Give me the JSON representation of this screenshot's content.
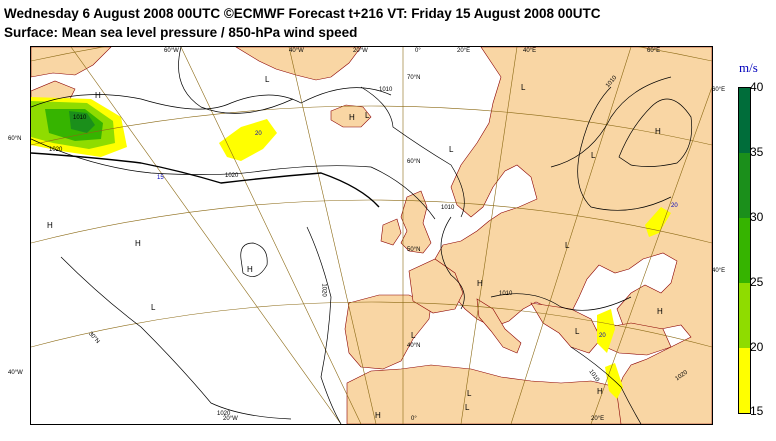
{
  "title_line1": "Wednesday 6 August 2008 00UTC ©ECMWF Forecast t+216 VT: Friday 15 August 2008 00UTC",
  "title_line2": "Surface: Mean sea level pressure / 850-hPa wind speed",
  "legend": {
    "unit": "m/s",
    "ticks": [
      "40",
      "35",
      "30",
      "25",
      "20",
      "15"
    ],
    "colors": [
      "#006d3a",
      "#1b8f1b",
      "#36b400",
      "#8fdc00",
      "#e0f000",
      "#ffff00"
    ]
  },
  "colors": {
    "land": "#f9d6a4",
    "sea": "#ffffff",
    "isobar": "#000000",
    "coast": "#8b0000"
  },
  "lon_labels": [
    "60°W",
    "40°W",
    "20°W",
    "0°",
    "20°E",
    "40°E",
    "60°E"
  ],
  "bottom_lon_labels": [
    "20°W",
    "0°",
    "20°E"
  ],
  "lat_labels": [
    "70°N",
    "60°N",
    "50°N",
    "40°N",
    "30°N"
  ],
  "edge_lat_labels": {
    "left_60": "60°N",
    "left_40": "40°W",
    "right_60": "60°E",
    "right_40": "40°E"
  },
  "isobar_labels": [
    "1010",
    "1020",
    "1010",
    "1020",
    "1010",
    "1010",
    "1010",
    "1020",
    "1020",
    "1010",
    "1020"
  ],
  "wind_labels": [
    "20",
    "20",
    "15",
    "20"
  ],
  "pressure_centres": [
    "H",
    "L",
    "H",
    "H",
    "L",
    "L",
    "H",
    "L",
    "L",
    "H",
    "L",
    "L",
    "H",
    "H",
    "L",
    "H",
    "L",
    "H",
    "H",
    "L",
    "L"
  ]
}
